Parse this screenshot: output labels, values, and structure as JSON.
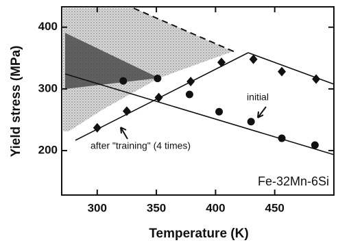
{
  "chart_data": {
    "type": "scatter",
    "xlabel": "Temperature (K)",
    "ylabel": "Yield stress (MPa)",
    "annotation": "Fe-32Mn-6Si",
    "xlim": [
      270,
      500
    ],
    "ylim": [
      128,
      433
    ],
    "xticks": [
      300,
      350,
      400,
      450
    ],
    "yticks": [
      200,
      300,
      400
    ],
    "series": [
      {
        "name": "initial",
        "marker": "circle",
        "color": "#111",
        "x": [
          322,
          351,
          378,
          403,
          430,
          456,
          484
        ],
        "values": [
          313,
          317,
          291,
          263,
          247,
          220,
          209
        ]
      },
      {
        "name": "after \"training\" (4 times)",
        "marker": "diamond",
        "color": "#111",
        "x": [
          300,
          325,
          352,
          379,
          405,
          432,
          456,
          485
        ],
        "values": [
          237,
          264,
          286,
          312,
          343,
          348,
          328,
          316
        ]
      }
    ]
  }
}
